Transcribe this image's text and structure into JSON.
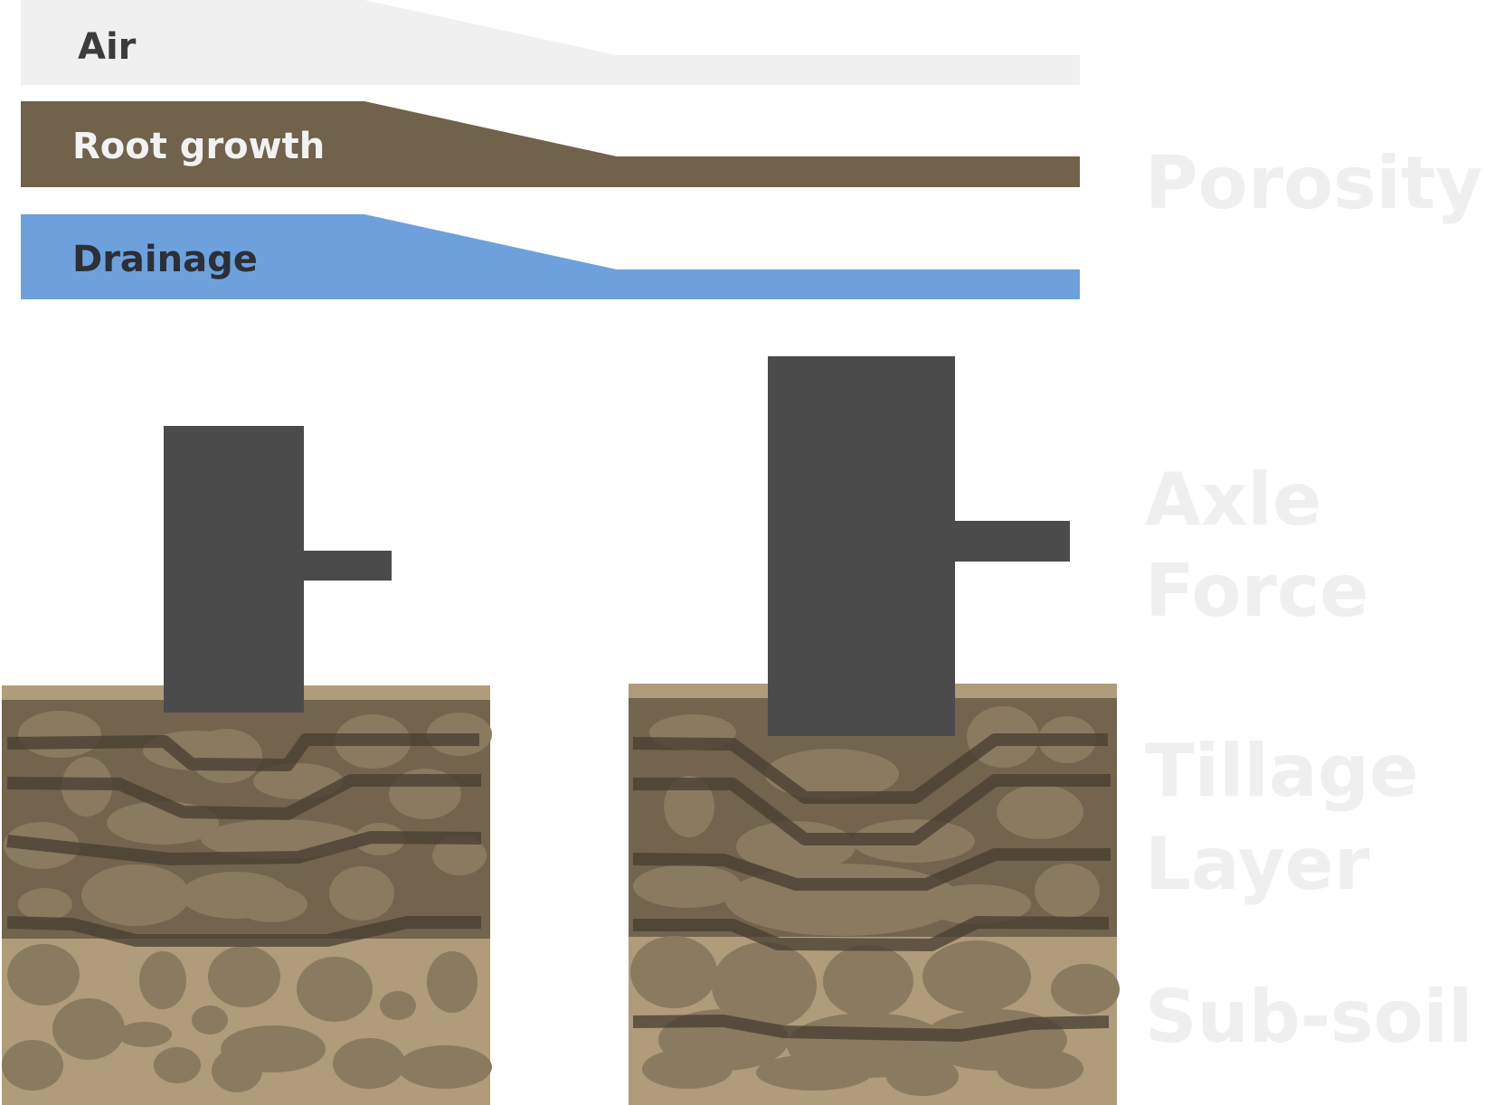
{
  "bands": {
    "air": {
      "label": "Air",
      "fill": "#f0f0f0",
      "text_color": "#3c3c3c"
    },
    "root_growth": {
      "label": "Root growth",
      "fill": "#70624b",
      "text_color": "#f2f2f2"
    },
    "drainage": {
      "label": "Drainage",
      "fill": "#6ea0dc",
      "text_color": "#2b2f38"
    }
  },
  "side_labels": {
    "porosity": "Porosity",
    "axle_line1": "Axle",
    "axle_line2": "Force",
    "tillage_line1": "Tillage",
    "tillage_line2": "Layer",
    "subsoil": "Sub-soil"
  },
  "colors": {
    "label_gray": "#efefef",
    "axle": "#4b4b4b",
    "surface": "#b09b7a",
    "tillage": "#72644d",
    "subsoil": "#b09b7a",
    "clod": "#8a7a5f",
    "compaction_line": "#463d30"
  },
  "icons": [
    "light-axle-icon",
    "heavy-axle-icon"
  ]
}
